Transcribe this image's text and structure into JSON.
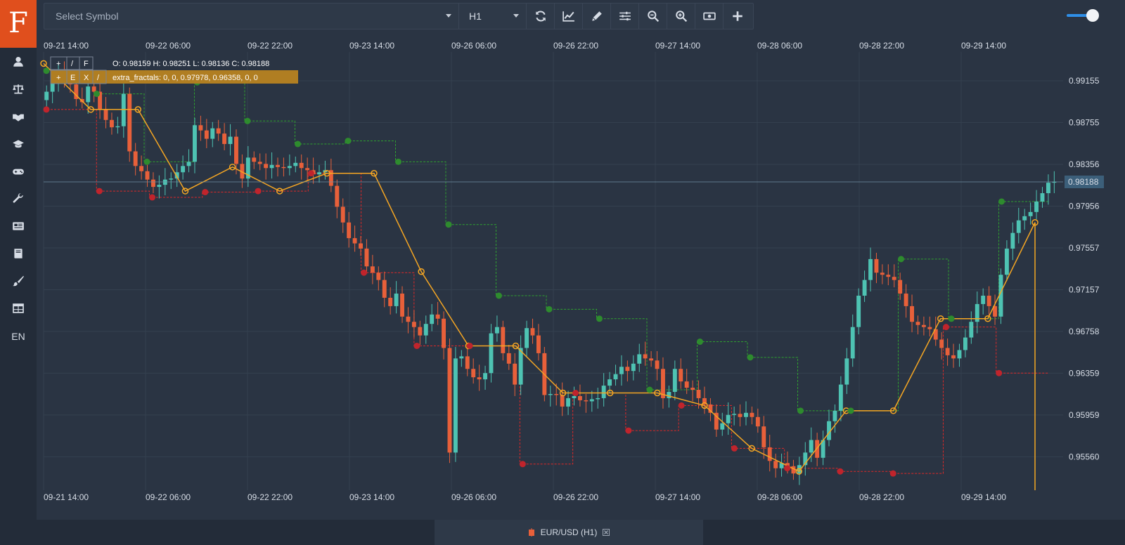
{
  "sidebar": {
    "logo": "F",
    "items": [
      {
        "name": "user-icon",
        "glyph": "user"
      },
      {
        "name": "scale-icon",
        "glyph": "scale"
      },
      {
        "name": "handshake-icon",
        "glyph": "handshake"
      },
      {
        "name": "graduation-cap-icon",
        "glyph": "cap"
      },
      {
        "name": "gamepad-icon",
        "glyph": "gamepad"
      },
      {
        "name": "wrench-icon",
        "glyph": "wrench"
      },
      {
        "name": "newspaper-icon",
        "glyph": "news"
      },
      {
        "name": "book-icon",
        "glyph": "book"
      },
      {
        "name": "brush-icon",
        "glyph": "brush"
      },
      {
        "name": "table-icon",
        "glyph": "table"
      }
    ],
    "language": "EN"
  },
  "toolbar": {
    "symbol_placeholder": "Select Symbol",
    "timeframe": "H1",
    "buttons": [
      "refresh-icon",
      "chart-line-icon",
      "pencil-icon",
      "sliders-icon",
      "zoom-out-icon",
      "zoom-in-icon",
      "money-icon",
      "plus-icon"
    ]
  },
  "legend": {
    "row1_buttons": [
      "+",
      "/",
      "F"
    ],
    "ohlc": "O: 0.98159 H: 0.98251 L: 0.98136 C: 0.98188",
    "row2_buttons": [
      "+",
      "E",
      "X",
      "/"
    ],
    "indicator": "extra_fractals: 0, 0, 0.97978, 0.96358, 0, 0"
  },
  "bottom_tab": {
    "label": "EUR/USD (H1)"
  },
  "colors": {
    "background": "#2a3443",
    "up": "#4ec3b3",
    "down": "#e8603a",
    "zigzag": "#f5a623",
    "fractal_up": "#2e8b2e",
    "fractal_down": "#c0242c",
    "level_up": "#2fa12f",
    "level_down": "#e02828",
    "indicator_bg": "#b07e22"
  },
  "chart_data": {
    "type": "candlestick",
    "symbol": "EUR/USD (H1)",
    "x_ticks": [
      "09-21 14:00",
      "09-22 06:00",
      "09-22 22:00",
      "09-23 14:00",
      "09-26 06:00",
      "09-26 22:00",
      "09-27 14:00",
      "09-28 06:00",
      "09-28 22:00",
      "09-29 14:00"
    ],
    "y_ticks": [
      0.99155,
      0.98755,
      0.98356,
      0.97956,
      0.97557,
      0.97157,
      0.96758,
      0.96359,
      0.95959,
      0.9556
    ],
    "ylim": [
      0.9524,
      0.9943
    ],
    "last_price": 0.98188,
    "close": [
      0.9905,
      0.9915,
      0.9922,
      0.9918,
      0.9912,
      0.9898,
      0.9895,
      0.991,
      0.9905,
      0.9888,
      0.9878,
      0.9871,
      0.9872,
      0.9903,
      0.9848,
      0.9834,
      0.9829,
      0.9821,
      0.9814,
      0.9816,
      0.9821,
      0.9822,
      0.9828,
      0.9834,
      0.9838,
      0.9873,
      0.9868,
      0.986,
      0.987,
      0.9865,
      0.9855,
      0.9862,
      0.9836,
      0.9822,
      0.9842,
      0.9838,
      0.9836,
      0.9832,
      0.9835,
      0.9833,
      0.9832,
      0.9834,
      0.9837,
      0.9832,
      0.983,
      0.9826,
      0.9828,
      0.983,
      0.9815,
      0.9795,
      0.978,
      0.9765,
      0.976,
      0.9755,
      0.9738,
      0.9732,
      0.9725,
      0.9708,
      0.97,
      0.9712,
      0.969,
      0.9685,
      0.968,
      0.9672,
      0.9683,
      0.9692,
      0.9688,
      0.966,
      0.956,
      0.965,
      0.9652,
      0.964,
      0.9632,
      0.963,
      0.9636,
      0.9674,
      0.968,
      0.9655,
      0.9645,
      0.9625,
      0.966,
      0.9679,
      0.9672,
      0.9655,
      0.9615,
      0.9616,
      0.9615,
      0.9604,
      0.9612,
      0.9614,
      0.961,
      0.9609,
      0.9611,
      0.9612,
      0.9624,
      0.963,
      0.9635,
      0.9642,
      0.9638,
      0.9645,
      0.9654,
      0.965,
      0.9648,
      0.964,
      0.9612,
      0.9618,
      0.964,
      0.9628,
      0.9622,
      0.962,
      0.9612,
      0.9606,
      0.9598,
      0.9582,
      0.9588,
      0.9596,
      0.9597,
      0.9594,
      0.9598,
      0.9594,
      0.9585,
      0.9565,
      0.9552,
      0.9545,
      0.955,
      0.9547,
      0.954,
      0.9548,
      0.956,
      0.9572,
      0.9555,
      0.9572,
      0.959,
      0.96,
      0.9625,
      0.965,
      0.968,
      0.971,
      0.9725,
      0.9745,
      0.9732,
      0.973,
      0.9728,
      0.9725,
      0.9712,
      0.97,
      0.9685,
      0.9682,
      0.968,
      0.9678,
      0.9668,
      0.966,
      0.9653,
      0.965,
      0.9658,
      0.967,
      0.9685,
      0.9702,
      0.971,
      0.97,
      0.969,
      0.973,
      0.9755,
      0.977,
      0.9782,
      0.9786,
      0.979,
      0.98,
      0.9808,
      0.9818,
      0.9819
    ],
    "fractal_highs": [
      0.9925,
      0.9903,
      0.9838,
      0.9914,
      0.9877,
      0.9855,
      0.9858,
      0.9838,
      0.9778,
      0.971,
      0.9697,
      0.9688,
      0.962,
      0.9666,
      0.9651,
      0.96,
      0.96,
      0.9745,
      0.9688,
      0.98
    ],
    "fractal_lows": [
      0.9888,
      0.981,
      0.9804,
      0.9809,
      0.981,
      0.9827,
      0.9732,
      0.9662,
      0.9662,
      0.9549,
      0.9617,
      0.9581,
      0.9605,
      0.9564,
      0.9545,
      0.9542,
      0.954,
      0.968,
      0.9636
    ],
    "zigzag": [
      [
        0.9932
      ],
      [
        0.9888
      ],
      [
        0.9888
      ],
      [
        0.981
      ],
      [
        0.9833
      ],
      [
        0.981
      ],
      [
        0.9827
      ],
      [
        0.9827
      ],
      [
        0.9733
      ],
      [
        0.9662
      ],
      [
        0.9662
      ],
      [
        0.9617
      ],
      [
        0.9617
      ],
      [
        0.9617
      ],
      [
        0.9605
      ],
      [
        0.9564
      ],
      [
        0.9542
      ],
      [
        0.96
      ],
      [
        0.96
      ],
      [
        0.9688
      ],
      [
        0.9688
      ],
      [
        0.978
      ]
    ]
  }
}
